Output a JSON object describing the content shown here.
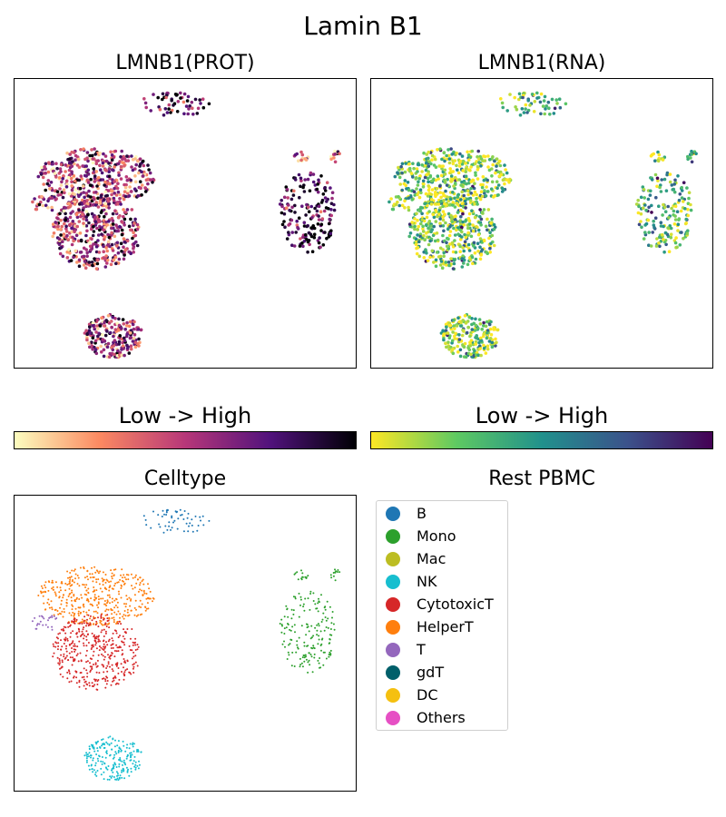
{
  "figure": {
    "title": "Lamin B1"
  },
  "panels": {
    "prot": {
      "title": "LMNB1(PROT)"
    },
    "rna": {
      "title": "LMNB1(RNA)"
    },
    "celltype": {
      "title": "Celltype"
    },
    "legend_title": "Rest PBMC"
  },
  "colorbars": {
    "prot": {
      "label": "Low  ->  High",
      "colormap": "magma",
      "colors": [
        "#fcfdbf",
        "#fc8961",
        "#b73779",
        "#51127c",
        "#000004"
      ]
    },
    "rna": {
      "label": "Low  ->  High",
      "colormap": "viridis",
      "colors": [
        "#fde725",
        "#5ec962",
        "#21918c",
        "#3b528b",
        "#440154"
      ]
    }
  },
  "celltype_colors": {
    "B": "#1f77b4",
    "Mono": "#2ca02c",
    "Mac": "#bcbd22",
    "NK": "#17becf",
    "CytotoxicT": "#d62728",
    "HelperT": "#ff7f0e",
    "T": "#9467bd",
    "gdT": "#005f6a",
    "DC": "#f5c010",
    "Others": "#e64fc4"
  },
  "legend": {
    "items": [
      {
        "label": "B",
        "color": "#1f77b4"
      },
      {
        "label": "Mono",
        "color": "#2ca02c"
      },
      {
        "label": "Mac",
        "color": "#bcbd22"
      },
      {
        "label": "NK",
        "color": "#17becf"
      },
      {
        "label": "CytotoxicT",
        "color": "#d62728"
      },
      {
        "label": "HelperT",
        "color": "#ff7f0e"
      },
      {
        "label": "T",
        "color": "#9467bd"
      },
      {
        "label": "gdT",
        "color": "#005f6a"
      },
      {
        "label": "DC",
        "color": "#f5c010"
      },
      {
        "label": "Others",
        "color": "#e64fc4"
      }
    ]
  },
  "chart_data": [
    {
      "type": "scatter",
      "title": "LMNB1(PROT)",
      "colormap": "magma",
      "axes": "hidden ticks",
      "clusters": [
        {
          "celltype": "B",
          "cx": 0.47,
          "cy": 0.91,
          "rx": 0.11,
          "ry": 0.045,
          "n": 55,
          "expr": 0.75
        },
        {
          "celltype": "HelperT",
          "cx": 0.24,
          "cy": 0.66,
          "rx": 0.17,
          "ry": 0.1,
          "n": 420,
          "expr": 0.5
        },
        {
          "celltype": "T",
          "cx": 0.09,
          "cy": 0.57,
          "rx": 0.04,
          "ry": 0.03,
          "n": 25,
          "expr": 0.5
        },
        {
          "celltype": "CytotoxicT",
          "cx": 0.24,
          "cy": 0.47,
          "rx": 0.13,
          "ry": 0.13,
          "n": 420,
          "expr": 0.55
        },
        {
          "celltype": "NK",
          "cx": 0.29,
          "cy": 0.11,
          "rx": 0.085,
          "ry": 0.075,
          "n": 210,
          "expr": 0.6
        },
        {
          "celltype": "Mono",
          "cx": 0.86,
          "cy": 0.54,
          "rx": 0.085,
          "ry": 0.14,
          "n": 170,
          "expr": 0.85
        },
        {
          "celltype": "Mono",
          "cx": 0.84,
          "cy": 0.73,
          "rx": 0.02,
          "ry": 0.02,
          "n": 14,
          "expr": 0.4
        },
        {
          "celltype": "Mono",
          "cx": 0.94,
          "cy": 0.73,
          "rx": 0.02,
          "ry": 0.02,
          "n": 12,
          "expr": 0.4
        }
      ]
    },
    {
      "type": "scatter",
      "title": "LMNB1(RNA)",
      "colormap": "viridis",
      "axes": "hidden ticks",
      "clusters": [
        {
          "celltype": "B",
          "cx": 0.47,
          "cy": 0.91,
          "rx": 0.11,
          "ry": 0.045,
          "n": 55,
          "expr": 0.35
        },
        {
          "celltype": "HelperT",
          "cx": 0.24,
          "cy": 0.66,
          "rx": 0.17,
          "ry": 0.1,
          "n": 420,
          "expr": 0.2
        },
        {
          "celltype": "T",
          "cx": 0.09,
          "cy": 0.57,
          "rx": 0.04,
          "ry": 0.03,
          "n": 25,
          "expr": 0.2
        },
        {
          "celltype": "CytotoxicT",
          "cx": 0.24,
          "cy": 0.47,
          "rx": 0.13,
          "ry": 0.13,
          "n": 420,
          "expr": 0.25
        },
        {
          "celltype": "NK",
          "cx": 0.29,
          "cy": 0.11,
          "rx": 0.085,
          "ry": 0.075,
          "n": 210,
          "expr": 0.2
        },
        {
          "celltype": "Mono",
          "cx": 0.86,
          "cy": 0.54,
          "rx": 0.085,
          "ry": 0.14,
          "n": 170,
          "expr": 0.35
        },
        {
          "celltype": "Mono",
          "cx": 0.84,
          "cy": 0.73,
          "rx": 0.02,
          "ry": 0.02,
          "n": 14,
          "expr": 0.1
        },
        {
          "celltype": "Mono",
          "cx": 0.94,
          "cy": 0.73,
          "rx": 0.02,
          "ry": 0.02,
          "n": 12,
          "expr": 0.35
        }
      ]
    },
    {
      "type": "scatter",
      "title": "Celltype",
      "color_by": "celltype",
      "axes": "hidden ticks",
      "clusters": [
        {
          "celltype": "B",
          "cx": 0.47,
          "cy": 0.91,
          "rx": 0.11,
          "ry": 0.045,
          "n": 55
        },
        {
          "celltype": "HelperT",
          "cx": 0.24,
          "cy": 0.66,
          "rx": 0.17,
          "ry": 0.1,
          "n": 420
        },
        {
          "celltype": "T",
          "cx": 0.09,
          "cy": 0.57,
          "rx": 0.04,
          "ry": 0.03,
          "n": 25
        },
        {
          "celltype": "CytotoxicT",
          "cx": 0.24,
          "cy": 0.47,
          "rx": 0.13,
          "ry": 0.13,
          "n": 420
        },
        {
          "celltype": "NK",
          "cx": 0.29,
          "cy": 0.11,
          "rx": 0.085,
          "ry": 0.075,
          "n": 210
        },
        {
          "celltype": "Mono",
          "cx": 0.86,
          "cy": 0.54,
          "rx": 0.085,
          "ry": 0.14,
          "n": 170
        },
        {
          "celltype": "Mono",
          "cx": 0.84,
          "cy": 0.73,
          "rx": 0.02,
          "ry": 0.02,
          "n": 14
        },
        {
          "celltype": "Mono",
          "cx": 0.94,
          "cy": 0.73,
          "rx": 0.02,
          "ry": 0.02,
          "n": 12
        }
      ]
    }
  ]
}
